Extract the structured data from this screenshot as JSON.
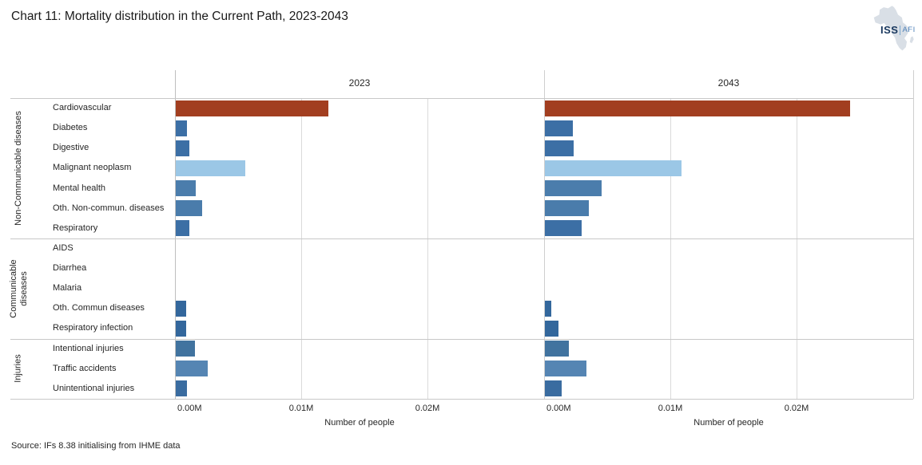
{
  "title": "Chart 11: Mortality distribution in the Current Path, 2023-2043",
  "source": "Source: IFs 8.38 initialising from IHME data",
  "logo": {
    "iss": "ISS",
    "afi": "AFI"
  },
  "chart_data": {
    "type": "bar",
    "orientation": "horizontal",
    "title": "Chart 11: Mortality distribution in the Current Path, 2023-2043",
    "panels": [
      "2023",
      "2043"
    ],
    "xlabel": "Number of people",
    "x_ticks": [
      {
        "label": "0.00M",
        "value": 0
      },
      {
        "label": "0.01M",
        "value": 0.01
      },
      {
        "label": "0.02M",
        "value": 0.02
      }
    ],
    "xlim": [
      0,
      0.0292
    ],
    "unit": "millions of people",
    "grid": "vertical",
    "legend": false,
    "groups": [
      {
        "label": "Non-Communicable diseases",
        "categories": [
          {
            "label": "Cardiovascular",
            "color": "#a23e20",
            "values": {
              "2023": 0.0121,
              "2043": 0.0242
            }
          },
          {
            "label": "Diabetes",
            "color": "#3c6fa5",
            "values": {
              "2023": 0.0009,
              "2043": 0.0022
            }
          },
          {
            "label": "Digestive",
            "color": "#3c6fa5",
            "values": {
              "2023": 0.0011,
              "2043": 0.0023
            }
          },
          {
            "label": "Malignant neoplasm",
            "color": "#9bc7e6",
            "values": {
              "2023": 0.0055,
              "2043": 0.0108
            }
          },
          {
            "label": "Mental health",
            "color": "#4b7dac",
            "values": {
              "2023": 0.0016,
              "2043": 0.0045
            }
          },
          {
            "label": "Oth. Non-commun. diseases",
            "color": "#4a7cab",
            "values": {
              "2023": 0.0021,
              "2043": 0.0035
            }
          },
          {
            "label": "Respiratory",
            "color": "#3c6fa5",
            "values": {
              "2023": 0.0011,
              "2043": 0.0029
            }
          }
        ]
      },
      {
        "label": "Communicable diseases",
        "categories": [
          {
            "label": "AIDS",
            "color": "#3c6fa5",
            "values": {
              "2023": 0,
              "2043": 0
            }
          },
          {
            "label": "Diarrhea",
            "color": "#3c6fa5",
            "values": {
              "2023": 0,
              "2043": 0
            }
          },
          {
            "label": "Malaria",
            "color": "#3c6fa5",
            "values": {
              "2023": 0,
              "2043": 0
            }
          },
          {
            "label": "Oth. Commun diseases",
            "color": "#33679c",
            "values": {
              "2023": 0.0008,
              "2043": 0.0005
            }
          },
          {
            "label": "Respiratory infection",
            "color": "#33679c",
            "values": {
              "2023": 0.0008,
              "2043": 0.0011
            }
          }
        ]
      },
      {
        "label": "Injuries",
        "categories": [
          {
            "label": "Intentional injuries",
            "color": "#41739f",
            "values": {
              "2023": 0.0015,
              "2043": 0.0019
            }
          },
          {
            "label": "Traffic accidents",
            "color": "#5585b3",
            "values": {
              "2023": 0.0025,
              "2043": 0.0033
            }
          },
          {
            "label": "Unintentional injuries",
            "color": "#3a6ca0",
            "values": {
              "2023": 0.0009,
              "2043": 0.0013
            }
          }
        ]
      }
    ]
  }
}
